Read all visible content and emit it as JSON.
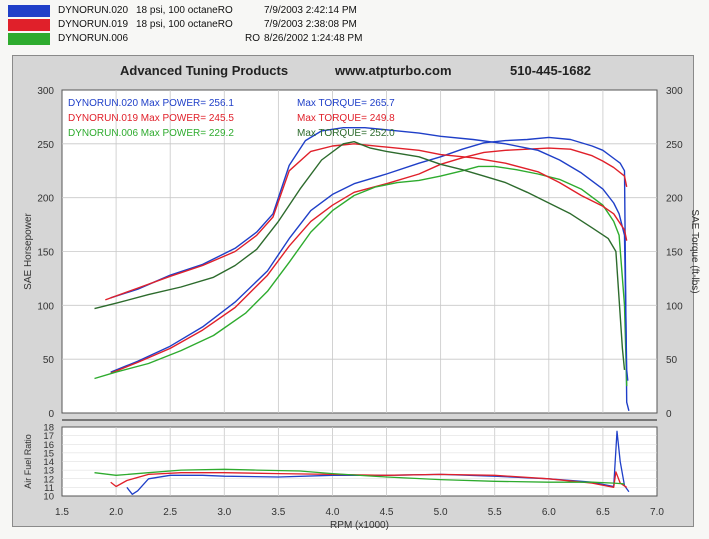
{
  "runs": [
    {
      "name": "DYNORUN.020",
      "desc": "18 psi, 100 octaneRO",
      "date": "7/9/2003 2:42:14 PM",
      "color": "#1f3fc8"
    },
    {
      "name": "DYNORUN.019",
      "desc": "18 psi, 100 octaneRO",
      "date": "7/9/2003 2:38:08 PM",
      "color": "#e0202a"
    },
    {
      "name": "DYNORUN.006",
      "desc": "RO",
      "date": "8/26/2002 1:24:48 PM",
      "color": "#2eab2e"
    }
  ],
  "header": {
    "company": "Advanced Tuning Products",
    "website": "www.atpturbo.com",
    "phone": "510-445-1682"
  },
  "annotations": {
    "power": [
      {
        "run": "DYNORUN.020",
        "label": "Max POWER=",
        "value": "256.1"
      },
      {
        "run": "DYNORUN.019",
        "label": "Max POWER=",
        "value": "245.5"
      },
      {
        "run": "DYNORUN.006",
        "label": "Max POWER=",
        "value": "229.2"
      }
    ],
    "torque": [
      {
        "label": "Max TORQUE=",
        "value": "265.7"
      },
      {
        "label": "Max TORQUE=",
        "value": "249.8"
      },
      {
        "label": "Max TORQUE=",
        "value": "252.0"
      }
    ]
  },
  "chart_data": {
    "type": "line",
    "xlabel": "RPM (x1000)",
    "ylabel_left": "SAE Horsepower",
    "ylabel_right": "SAE Torque (ft-lbs)",
    "afr_label": "Air Fuel Ratio",
    "xlim": [
      1.5,
      7.0
    ],
    "x_ticks": [
      "1.5",
      "2.0",
      "2.5",
      "3.0",
      "3.5",
      "4.0",
      "4.5",
      "5.0",
      "5.5",
      "6.0",
      "6.5",
      "7.0"
    ],
    "ylim": [
      0,
      300
    ],
    "y_ticks": [
      "0",
      "50",
      "100",
      "150",
      "200",
      "250",
      "300"
    ],
    "afr_ylim": [
      10,
      18
    ],
    "afr_ticks": [
      "10",
      "11",
      "12",
      "13",
      "14",
      "15",
      "16",
      "17",
      "18"
    ],
    "grid": true,
    "power_series": [
      {
        "name": "DYNORUN.020",
        "color": "#1f3fc8",
        "points": [
          [
            1.95,
            38
          ],
          [
            2.2,
            48
          ],
          [
            2.5,
            62
          ],
          [
            2.8,
            80
          ],
          [
            3.1,
            103
          ],
          [
            3.4,
            132
          ],
          [
            3.6,
            162
          ],
          [
            3.8,
            188
          ],
          [
            4.0,
            203
          ],
          [
            4.2,
            213
          ],
          [
            4.5,
            222
          ],
          [
            4.8,
            232
          ],
          [
            5.0,
            238
          ],
          [
            5.2,
            245
          ],
          [
            5.4,
            251
          ],
          [
            5.6,
            253
          ],
          [
            5.8,
            254
          ],
          [
            6.0,
            256
          ],
          [
            6.2,
            254
          ],
          [
            6.4,
            248
          ],
          [
            6.5,
            244
          ],
          [
            6.62,
            235
          ],
          [
            6.66,
            232
          ],
          [
            6.7,
            225
          ],
          [
            6.72,
            10
          ],
          [
            6.74,
            2
          ]
        ]
      },
      {
        "name": "DYNORUN.019",
        "color": "#e0202a",
        "points": [
          [
            1.95,
            37
          ],
          [
            2.2,
            47
          ],
          [
            2.5,
            60
          ],
          [
            2.8,
            77
          ],
          [
            3.1,
            98
          ],
          [
            3.4,
            128
          ],
          [
            3.6,
            155
          ],
          [
            3.8,
            178
          ],
          [
            4.0,
            193
          ],
          [
            4.2,
            205
          ],
          [
            4.5,
            213
          ],
          [
            4.8,
            222
          ],
          [
            5.0,
            231
          ],
          [
            5.2,
            237
          ],
          [
            5.4,
            242
          ],
          [
            5.6,
            244
          ],
          [
            5.8,
            245
          ],
          [
            6.0,
            246
          ],
          [
            6.2,
            245
          ],
          [
            6.4,
            239
          ],
          [
            6.5,
            234
          ],
          [
            6.6,
            228
          ],
          [
            6.7,
            220
          ],
          [
            6.72,
            210
          ]
        ]
      },
      {
        "name": "DYNORUN.006",
        "color": "#2eab2e",
        "points": [
          [
            1.8,
            32
          ],
          [
            2.0,
            38
          ],
          [
            2.3,
            46
          ],
          [
            2.6,
            58
          ],
          [
            2.9,
            72
          ],
          [
            3.2,
            93
          ],
          [
            3.4,
            113
          ],
          [
            3.6,
            140
          ],
          [
            3.8,
            168
          ],
          [
            4.0,
            188
          ],
          [
            4.2,
            202
          ],
          [
            4.4,
            210
          ],
          [
            4.6,
            214
          ],
          [
            4.8,
            216
          ],
          [
            5.0,
            220
          ],
          [
            5.2,
            225
          ],
          [
            5.35,
            229
          ],
          [
            5.5,
            229
          ],
          [
            5.7,
            226
          ],
          [
            5.9,
            222
          ],
          [
            6.1,
            217
          ],
          [
            6.3,
            208
          ],
          [
            6.5,
            193
          ],
          [
            6.6,
            178
          ],
          [
            6.65,
            165
          ],
          [
            6.7,
            100
          ],
          [
            6.72,
            25
          ]
        ]
      }
    ],
    "torque_series": [
      {
        "name": "DYNORUN.020",
        "color": "#1f3fc8",
        "points": [
          [
            1.95,
            107
          ],
          [
            2.2,
            115
          ],
          [
            2.5,
            128
          ],
          [
            2.8,
            138
          ],
          [
            3.1,
            153
          ],
          [
            3.3,
            168
          ],
          [
            3.45,
            185
          ],
          [
            3.6,
            230
          ],
          [
            3.75,
            253
          ],
          [
            3.9,
            262
          ],
          [
            4.1,
            265
          ],
          [
            4.3,
            265
          ],
          [
            4.5,
            263
          ],
          [
            4.8,
            260
          ],
          [
            5.0,
            257
          ],
          [
            5.3,
            254
          ],
          [
            5.6,
            250
          ],
          [
            5.9,
            244
          ],
          [
            6.1,
            235
          ],
          [
            6.3,
            223
          ],
          [
            6.5,
            208
          ],
          [
            6.6,
            195
          ],
          [
            6.65,
            185
          ],
          [
            6.7,
            165
          ],
          [
            6.72,
            40
          ],
          [
            6.73,
            30
          ]
        ]
      },
      {
        "name": "DYNORUN.019",
        "color": "#e0202a",
        "points": [
          [
            1.9,
            105
          ],
          [
            2.2,
            116
          ],
          [
            2.5,
            127
          ],
          [
            2.8,
            137
          ],
          [
            3.1,
            150
          ],
          [
            3.3,
            165
          ],
          [
            3.45,
            182
          ],
          [
            3.6,
            225
          ],
          [
            3.8,
            243
          ],
          [
            4.0,
            248
          ],
          [
            4.2,
            250
          ],
          [
            4.5,
            247
          ],
          [
            4.8,
            244
          ],
          [
            5.0,
            240
          ],
          [
            5.3,
            237
          ],
          [
            5.6,
            232
          ],
          [
            5.9,
            224
          ],
          [
            6.1,
            214
          ],
          [
            6.3,
            202
          ],
          [
            6.5,
            192
          ],
          [
            6.6,
            185
          ],
          [
            6.7,
            170
          ],
          [
            6.72,
            160
          ]
        ]
      },
      {
        "name": "DYNORUN.006",
        "color": "#2d6b2d",
        "points": [
          [
            1.8,
            97
          ],
          [
            2.0,
            102
          ],
          [
            2.3,
            110
          ],
          [
            2.6,
            117
          ],
          [
            2.9,
            126
          ],
          [
            3.1,
            137
          ],
          [
            3.3,
            152
          ],
          [
            3.5,
            178
          ],
          [
            3.7,
            208
          ],
          [
            3.9,
            235
          ],
          [
            4.1,
            250
          ],
          [
            4.2,
            252
          ],
          [
            4.35,
            246
          ],
          [
            4.5,
            243
          ],
          [
            4.8,
            238
          ],
          [
            5.0,
            231
          ],
          [
            5.2,
            226
          ],
          [
            5.4,
            220
          ],
          [
            5.6,
            214
          ],
          [
            5.8,
            205
          ],
          [
            6.0,
            195
          ],
          [
            6.2,
            185
          ],
          [
            6.4,
            172
          ],
          [
            6.55,
            162
          ],
          [
            6.62,
            150
          ],
          [
            6.68,
            60
          ],
          [
            6.7,
            40
          ]
        ]
      }
    ],
    "afr_series": [
      {
        "name": "DYNORUN.020",
        "color": "#1f3fc8",
        "points": [
          [
            2.1,
            11.0
          ],
          [
            2.15,
            10.2
          ],
          [
            2.2,
            10.6
          ],
          [
            2.3,
            12.0
          ],
          [
            2.5,
            12.4
          ],
          [
            2.8,
            12.4
          ],
          [
            3.0,
            12.3
          ],
          [
            3.5,
            12.2
          ],
          [
            4.0,
            12.4
          ],
          [
            4.5,
            12.4
          ],
          [
            5.0,
            12.5
          ],
          [
            5.5,
            12.3
          ],
          [
            6.0,
            12.0
          ],
          [
            6.4,
            11.6
          ],
          [
            6.6,
            11.1
          ],
          [
            6.63,
            17.5
          ],
          [
            6.66,
            14.0
          ],
          [
            6.7,
            11.2
          ],
          [
            6.74,
            10.5
          ]
        ]
      },
      {
        "name": "DYNORUN.019",
        "color": "#e0202a",
        "points": [
          [
            1.95,
            11.6
          ],
          [
            2.0,
            11.1
          ],
          [
            2.1,
            11.8
          ],
          [
            2.3,
            12.5
          ],
          [
            2.6,
            12.7
          ],
          [
            3.0,
            12.7
          ],
          [
            3.5,
            12.6
          ],
          [
            4.0,
            12.5
          ],
          [
            4.5,
            12.4
          ],
          [
            5.0,
            12.5
          ],
          [
            5.5,
            12.4
          ],
          [
            6.0,
            12.0
          ],
          [
            6.4,
            11.5
          ],
          [
            6.6,
            11.0
          ],
          [
            6.62,
            12.8
          ],
          [
            6.66,
            11.5
          ],
          [
            6.72,
            11.0
          ]
        ]
      },
      {
        "name": "DYNORUN.006",
        "color": "#2eab2e",
        "points": [
          [
            1.8,
            12.7
          ],
          [
            2.0,
            12.4
          ],
          [
            2.3,
            12.7
          ],
          [
            2.6,
            13.0
          ],
          [
            3.0,
            13.1
          ],
          [
            3.3,
            13.0
          ],
          [
            3.7,
            12.9
          ],
          [
            4.0,
            12.6
          ],
          [
            4.5,
            12.2
          ],
          [
            5.0,
            11.9
          ],
          [
            5.5,
            11.7
          ],
          [
            6.0,
            11.6
          ],
          [
            6.4,
            11.6
          ],
          [
            6.6,
            11.5
          ],
          [
            6.7,
            11.4
          ]
        ]
      }
    ]
  }
}
